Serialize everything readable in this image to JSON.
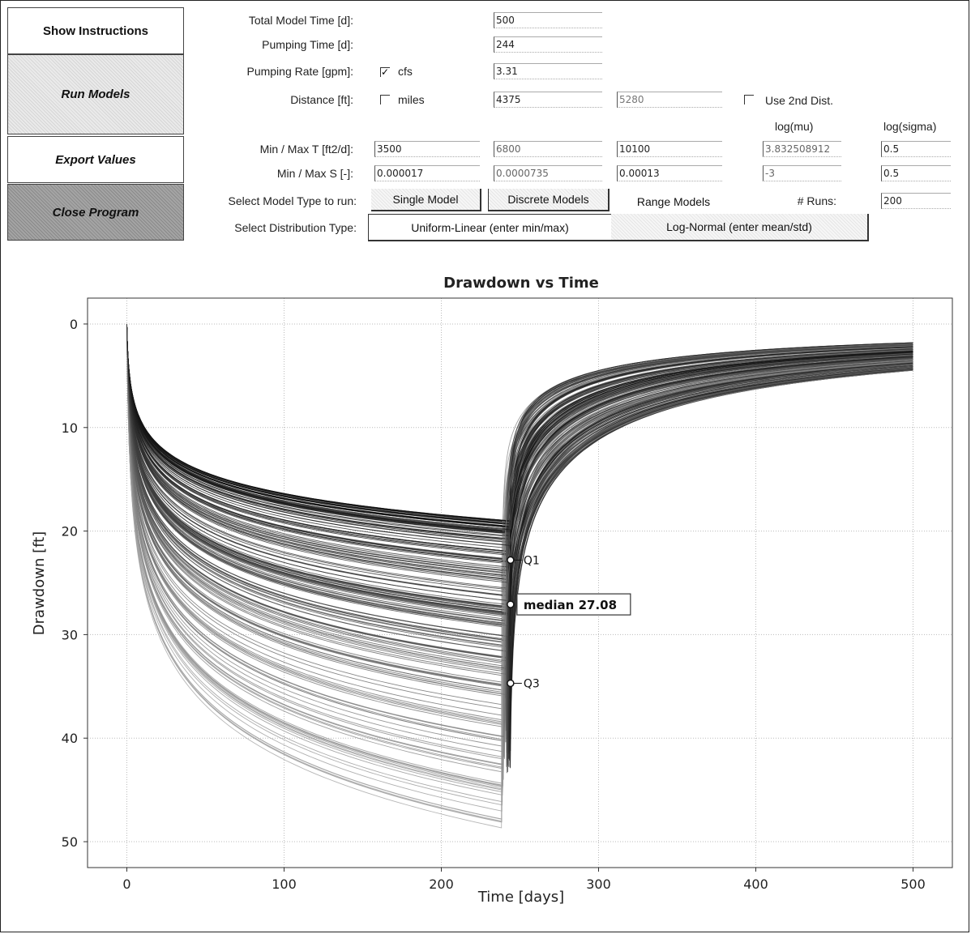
{
  "sidebar": {
    "show_instructions": "Show Instructions",
    "run_models": "Run Models",
    "export_values": "Export Values",
    "close_program": "Close Program"
  },
  "form": {
    "total_time_label": "Total Model Time [d]:",
    "total_time_value": "500",
    "pumping_time_label": "Pumping Time [d]:",
    "pumping_time_value": "244",
    "pumping_rate_label": "Pumping Rate [gpm]:",
    "cfs_checkbox_checked": true,
    "cfs_label": "cfs",
    "pumping_rate_value": "3.31",
    "distance_label": "Distance [ft]:",
    "miles_checkbox_checked": false,
    "miles_label": "miles",
    "distance_value_1": "4375",
    "distance_value_2": "5280",
    "use_2nd_dist_checked": false,
    "use_2nd_dist_label": "Use 2nd Dist.",
    "log_mu_header": "log(mu)",
    "log_sigma_header": "log(sigma)",
    "minmax_t_label": "Min / Max T [ft2/d]:",
    "t_min": "3500",
    "t_mid": "6800",
    "t_max": "10100",
    "t_log_mu": "3.832508912",
    "t_log_sigma": "0.5",
    "minmax_s_label": "Min / Max S [-]:",
    "s_min": "0.000017",
    "s_mid": "0.0000735",
    "s_max": "0.00013",
    "s_log_mu": "-3",
    "s_log_sigma": "0.5",
    "model_type_label": "Select Model Type to run:",
    "single_model": "Single Model",
    "discrete_models": "Discrete Models",
    "range_models": "Range Models",
    "runs_label": "# Runs:",
    "runs_value": "200",
    "distribution_label": "Select Distribution Type:",
    "uniform_linear": "Uniform-Linear (enter min/max)",
    "log_normal": "Log-Normal (enter mean/std)"
  },
  "chart_data": {
    "type": "line",
    "title": "Drawdown vs Time",
    "xlabel": "Time [days]",
    "ylabel": "Drawdown [ft]",
    "xlim": [
      -25,
      525
    ],
    "ylim": [
      52.5,
      -2.5
    ],
    "y_inverted": true,
    "grid": true,
    "xticks": [
      0,
      100,
      200,
      300,
      400,
      500
    ],
    "xtick_labels": [
      "0",
      "100",
      "200",
      "300",
      "400",
      "500"
    ],
    "yticks": [
      0,
      10,
      20,
      30,
      40,
      50
    ],
    "ytick_labels": [
      "0",
      "10",
      "20",
      "30",
      "40",
      "50"
    ],
    "pumping_stop_day": 244,
    "total_days": 500,
    "runs": 200,
    "drawdown_at_pump_stop_range": [
      19,
      50
    ],
    "recovery_at_end_range": [
      1.8,
      4.5
    ],
    "markers": [
      {
        "label": "Q1",
        "x": 244,
        "y": 22.8
      },
      {
        "label": "median 27.08",
        "x": 244,
        "y": 27.08
      },
      {
        "label": "Q3",
        "x": 244,
        "y": 34.7
      }
    ]
  }
}
